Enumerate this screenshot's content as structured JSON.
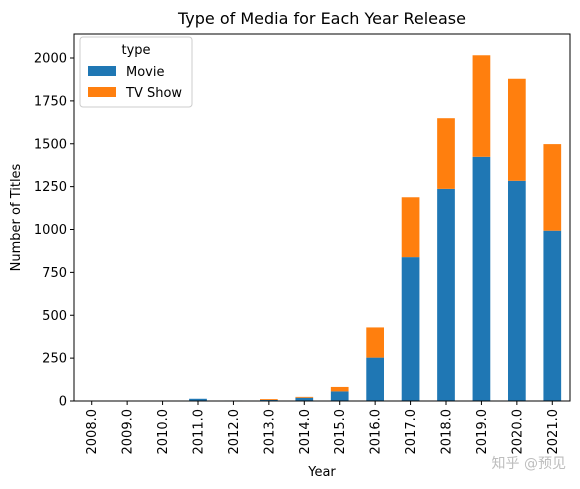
{
  "chart_data": {
    "type": "bar",
    "stacked": true,
    "title": "Type of Media for Each Year Release",
    "xlabel": "Year",
    "ylabel": "Number of Titles",
    "ylim": [
      0,
      2140
    ],
    "yticks": [
      0,
      250,
      500,
      750,
      1000,
      1250,
      1500,
      1750,
      2000
    ],
    "categories": [
      "2008.0",
      "2009.0",
      "2010.0",
      "2011.0",
      "2012.0",
      "2013.0",
      "2014.0",
      "2015.0",
      "2016.0",
      "2017.0",
      "2018.0",
      "2019.0",
      "2020.0",
      "2021.0"
    ],
    "series": [
      {
        "name": "Movie",
        "color": "#1f77b4",
        "values": [
          1,
          2,
          1,
          13,
          3,
          6,
          19,
          56,
          253,
          839,
          1237,
          1424,
          1284,
          993
        ]
      },
      {
        "name": "TV Show",
        "color": "#ff7f0e",
        "values": [
          1,
          0,
          0,
          0,
          0,
          5,
          5,
          26,
          176,
          349,
          412,
          592,
          595,
          505
        ]
      }
    ],
    "legend": {
      "title": "type",
      "position": "top-left"
    },
    "grid": false
  },
  "watermark": "知乎 @预见"
}
